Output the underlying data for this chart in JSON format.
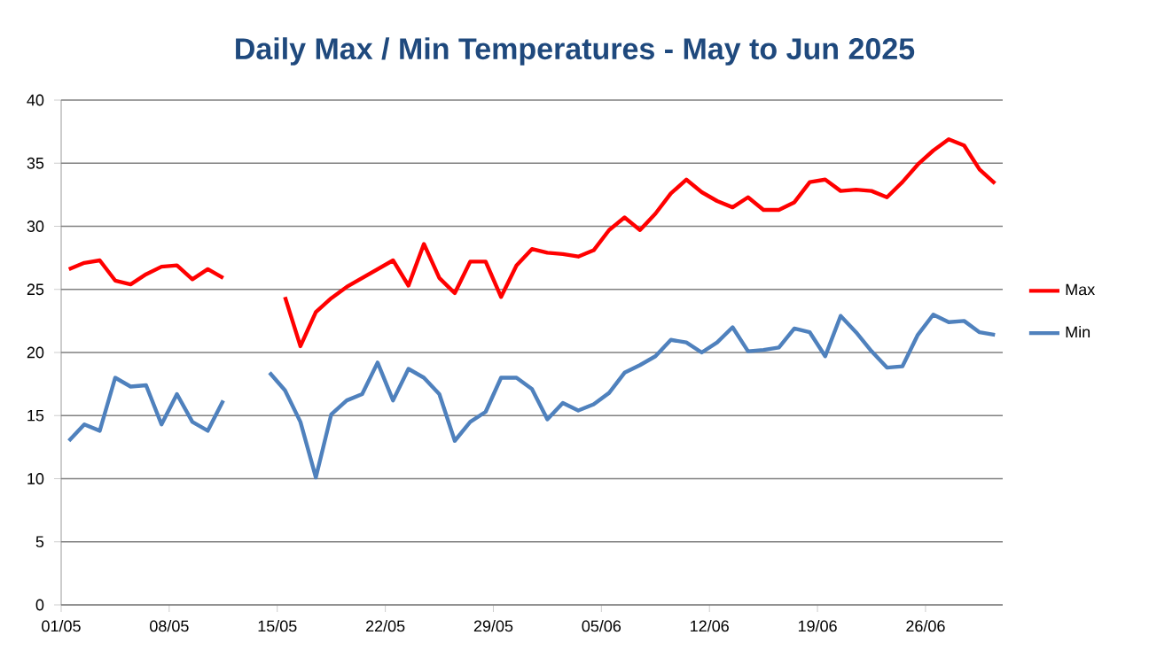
{
  "chart_data": {
    "type": "line",
    "title": "Daily Max / Min Temperatures - May to Jun 2025",
    "x": [
      "2025-05-01T12:00",
      "2025-05-02T12:00",
      "2025-05-03T12:00",
      "2025-05-04T12:00",
      "2025-05-05T12:00",
      "2025-05-06T12:00",
      "2025-05-07T12:00",
      "2025-05-08T12:00",
      "2025-05-09T12:00",
      "2025-05-10T12:00",
      "2025-05-11T12:00",
      "2025-05-12T12:00",
      "2025-05-13T12:00",
      "2025-05-14T12:00",
      "2025-05-15T12:00",
      "2025-05-16T12:00",
      "2025-05-17T12:00",
      "2025-05-18T12:00",
      "2025-05-19T12:00",
      "2025-05-20T12:00",
      "2025-05-21T12:00",
      "2025-05-22T12:00",
      "2025-05-23T12:00",
      "2025-05-24T12:00",
      "2025-05-25T12:00",
      "2025-05-26T12:00",
      "2025-05-27T12:00",
      "2025-05-28T12:00",
      "2025-05-29T12:00",
      "2025-05-30T12:00",
      "2025-05-31T12:00",
      "2025-06-01T12:00",
      "2025-06-02T12:00",
      "2025-06-03T12:00",
      "2025-06-04T12:00",
      "2025-06-05T12:00",
      "2025-06-06T12:00",
      "2025-06-07T12:00",
      "2025-06-08T12:00",
      "2025-06-09T12:00",
      "2025-06-10T12:00",
      "2025-06-11T12:00",
      "2025-06-12T12:00",
      "2025-06-13T12:00",
      "2025-06-14T12:00",
      "2025-06-15T12:00",
      "2025-06-16T12:00",
      "2025-06-17T12:00",
      "2025-06-18T12:00",
      "2025-06-19T12:00",
      "2025-06-20T12:00",
      "2025-06-21T12:00",
      "2025-06-22T12:00",
      "2025-06-23T12:00",
      "2025-06-24T12:00",
      "2025-06-25T12:00",
      "2025-06-26T12:00",
      "2025-06-27T12:00",
      "2025-06-28T12:00",
      "2025-06-29T12:00",
      "2025-06-30T12:00"
    ],
    "series": [
      {
        "name": "Max",
        "color": "#ff0000",
        "values": [
          26.6,
          27.1,
          27.3,
          25.7,
          25.4,
          26.2,
          26.8,
          26.9,
          25.8,
          26.6,
          25.9,
          null,
          null,
          null,
          24.4,
          20.5,
          23.2,
          24.3,
          25.2,
          25.9,
          26.6,
          27.3,
          25.3,
          28.6,
          25.9,
          24.7,
          27.2,
          27.2,
          24.4,
          26.9,
          28.2,
          27.9,
          27.8,
          27.6,
          28.1,
          29.7,
          30.7,
          29.7,
          31.0,
          32.6,
          33.7,
          32.7,
          32.0,
          31.5,
          32.3,
          31.3,
          31.3,
          31.9,
          33.5,
          33.7,
          32.8,
          32.9,
          32.8,
          32.3,
          33.5,
          34.9,
          36.0,
          36.9,
          36.4,
          34.5,
          33.4
        ]
      },
      {
        "name": "Min",
        "color": "#4f81bd",
        "values": [
          13.0,
          14.3,
          13.8,
          18.0,
          17.3,
          17.4,
          14.3,
          16.7,
          14.5,
          13.8,
          16.2,
          null,
          null,
          18.4,
          17.0,
          14.5,
          10.1,
          15.1,
          16.2,
          16.7,
          19.2,
          16.2,
          18.7,
          18.0,
          16.7,
          13.0,
          14.5,
          15.3,
          18.0,
          18.0,
          17.1,
          14.7,
          16.0,
          15.4,
          15.9,
          16.8,
          18.4,
          19.0,
          19.7,
          21.0,
          20.8,
          20.0,
          20.8,
          22.0,
          20.1,
          20.2,
          20.4,
          21.9,
          21.6,
          19.7,
          22.9,
          21.6,
          20.1,
          18.8,
          18.9,
          21.4,
          23.0,
          22.4,
          22.5,
          21.6,
          21.4
        ]
      }
    ],
    "xlim": [
      "2025-05-01",
      "2025-07-01"
    ],
    "xticks": [
      {
        "value": "2025-05-01",
        "label": "01/05"
      },
      {
        "value": "2025-05-08",
        "label": "08/05"
      },
      {
        "value": "2025-05-15",
        "label": "15/05"
      },
      {
        "value": "2025-05-22",
        "label": "22/05"
      },
      {
        "value": "2025-05-29",
        "label": "29/05"
      },
      {
        "value": "2025-06-05",
        "label": "05/06"
      },
      {
        "value": "2025-06-12",
        "label": "12/06"
      },
      {
        "value": "2025-06-19",
        "label": "19/06"
      },
      {
        "value": "2025-06-26",
        "label": "26/06"
      }
    ],
    "ylim": [
      0,
      40
    ],
    "yticks": [
      0,
      5,
      10,
      15,
      20,
      25,
      30,
      35,
      40
    ],
    "grid": "y",
    "legend": "right",
    "marker": "none",
    "line_style": "solid"
  }
}
